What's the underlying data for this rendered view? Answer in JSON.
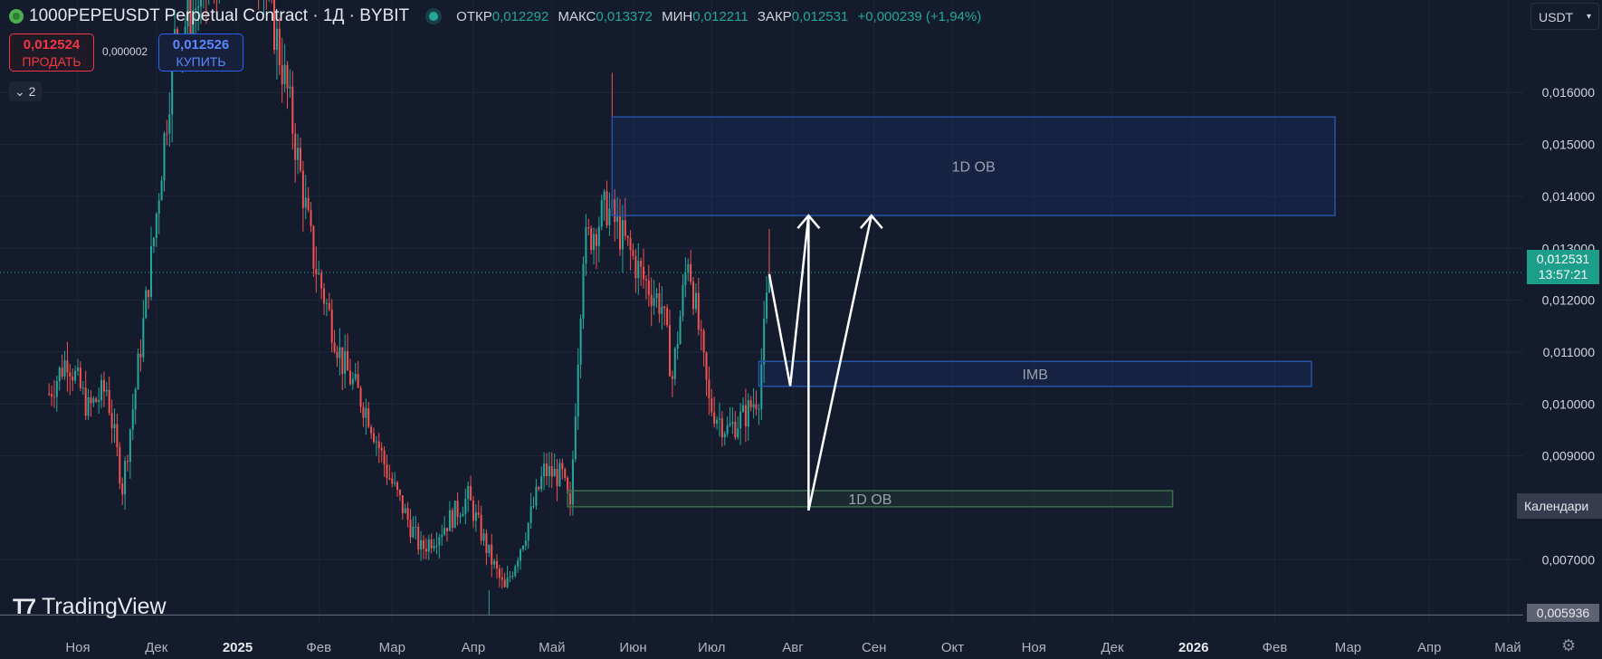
{
  "header": {
    "title": "1000PEPEUSDT Perpetual Contract · 1Д · BYBIT",
    "ohlc": [
      {
        "key": "ОТКР",
        "value": "0,012292"
      },
      {
        "key": "МАКС",
        "value": "0,013372"
      },
      {
        "key": "МИН",
        "value": "0,012211"
      },
      {
        "key": "ЗАКР",
        "value": "0,012531"
      }
    ],
    "change": "+0,000239 (+1,94%)"
  },
  "trade": {
    "sell_price": "0,012524",
    "sell_label": "ПРОДАТЬ",
    "spread": "0,000002",
    "buy_price": "0,012526",
    "buy_label": "КУПИТЬ"
  },
  "indicators_toggle": "2",
  "currency": "USDT",
  "calendar_label": "Календари",
  "brand": "TradingView",
  "current_price": {
    "value": "0,012531",
    "countdown": "13:57:21"
  },
  "low_price_label": "0,005936",
  "colors": {
    "up": "#26a69a",
    "down": "#ef5350",
    "background": "#141b2d",
    "zone_blue": "#2962ff",
    "zone_green": "#4caf50"
  },
  "chart_data": {
    "type": "candlestick",
    "title": "1000PEPEUSDT Perpetual Contract · 1Д · BYBIT",
    "ylim": [
      0.00575,
      0.01712
    ],
    "y_ticks": [
      0.016,
      0.015,
      0.014,
      0.013,
      0.012,
      0.011,
      0.01,
      0.009,
      0.007
    ],
    "y_tick_labels": [
      "0,016000",
      "0,015000",
      "0,014000",
      "0,013000",
      "0,012000",
      "0,011000",
      "0,010000",
      "0,009000",
      "0,007000"
    ],
    "x_ticks": [
      "Ноя",
      "Дек",
      "2025",
      "Фев",
      "Мар",
      "Апр",
      "Май",
      "Июн",
      "Июл",
      "Авг",
      "Сен",
      "Окт",
      "Ноя",
      "Дек",
      "2026",
      "Фев",
      "Мар",
      "Апр",
      "Май"
    ],
    "x_tick_dates": [
      "2024-11-01",
      "2024-12-01",
      "2025-01-01",
      "2025-02-01",
      "2025-03-01",
      "2025-04-01",
      "2025-05-01",
      "2025-06-01",
      "2025-07-01",
      "2025-08-01",
      "2025-09-01",
      "2025-10-01",
      "2025-11-01",
      "2025-12-01",
      "2026-01-01",
      "2026-02-01",
      "2026-03-01",
      "2026-04-01",
      "2026-05-01"
    ],
    "bold_ticks": [
      "2025",
      "2026"
    ],
    "keypoints": [
      [
        "2024-10-21",
        0.0102
      ],
      [
        "2024-10-28",
        0.0109
      ],
      [
        "2024-11-05",
        0.0099
      ],
      [
        "2024-11-12",
        0.0103
      ],
      [
        "2024-11-18",
        0.0084
      ],
      [
        "2024-11-23",
        0.0103
      ],
      [
        "2024-11-30",
        0.0132
      ],
      [
        "2024-12-08",
        0.017
      ],
      [
        "2024-12-20",
        0.018
      ],
      [
        "2025-01-02",
        0.019
      ],
      [
        "2025-01-10",
        0.0185
      ],
      [
        "2025-01-20",
        0.016
      ],
      [
        "2025-01-30",
        0.0128
      ],
      [
        "2025-02-10",
        0.0108
      ],
      [
        "2025-02-20",
        0.0098
      ],
      [
        "2025-02-27",
        0.0087
      ],
      [
        "2025-03-05",
        0.008
      ],
      [
        "2025-03-12",
        0.0072
      ],
      [
        "2025-03-20",
        0.0076
      ],
      [
        "2025-03-30",
        0.0082
      ],
      [
        "2025-04-07",
        0.0071
      ],
      [
        "2025-04-13",
        0.0064
      ],
      [
        "2025-04-22",
        0.0077
      ],
      [
        "2025-04-28",
        0.0087
      ],
      [
        "2025-05-05",
        0.0086
      ],
      [
        "2025-05-08",
        0.0079
      ],
      [
        "2025-05-10",
        0.01
      ],
      [
        "2025-05-13",
        0.013
      ],
      [
        "2025-05-22",
        0.0138
      ],
      [
        "2025-05-28",
        0.0132
      ],
      [
        "2025-06-05",
        0.0124
      ],
      [
        "2025-06-12",
        0.0119
      ],
      [
        "2025-06-16",
        0.0105
      ],
      [
        "2025-06-22",
        0.0129
      ],
      [
        "2025-06-30",
        0.01
      ],
      [
        "2025-07-07",
        0.0095
      ],
      [
        "2025-07-14",
        0.0098
      ],
      [
        "2025-07-19",
        0.0102
      ],
      [
        "2025-07-23",
        0.0125
      ]
    ],
    "notable_highs": [
      [
        "2025-05-24",
        0.01638
      ],
      [
        "2025-07-23",
        0.013372
      ]
    ],
    "notable_lows": [
      [
        "2025-04-07",
        0.005936
      ]
    ],
    "last_close": 0.012531,
    "zones": [
      {
        "label": "1D OB",
        "x_start": "2025-05-24",
        "x_end": "2026-02-24",
        "y_low": 0.01363,
        "y_high": 0.01553,
        "color": "blue"
      },
      {
        "label": "IMB",
        "x_start": "2025-07-19",
        "x_end": "2026-02-15",
        "y_low": 0.01034,
        "y_high": 0.01082,
        "color": "blue"
      },
      {
        "label": "1D OB",
        "x_start": "2025-05-07",
        "x_end": "2025-12-24",
        "y_low": 0.00802,
        "y_high": 0.00833,
        "color": "green"
      }
    ],
    "projection_path": [
      [
        "2025-07-23",
        0.0125
      ],
      [
        "2025-07-31",
        0.01035
      ],
      [
        "2025-08-07",
        0.01363
      ],
      [
        "2025-08-07",
        0.00795
      ],
      [
        "2025-08-31",
        0.01363
      ]
    ],
    "arrowheads": [
      [
        "2025-08-07",
        0.01363
      ],
      [
        "2025-08-31",
        0.01363
      ]
    ]
  }
}
